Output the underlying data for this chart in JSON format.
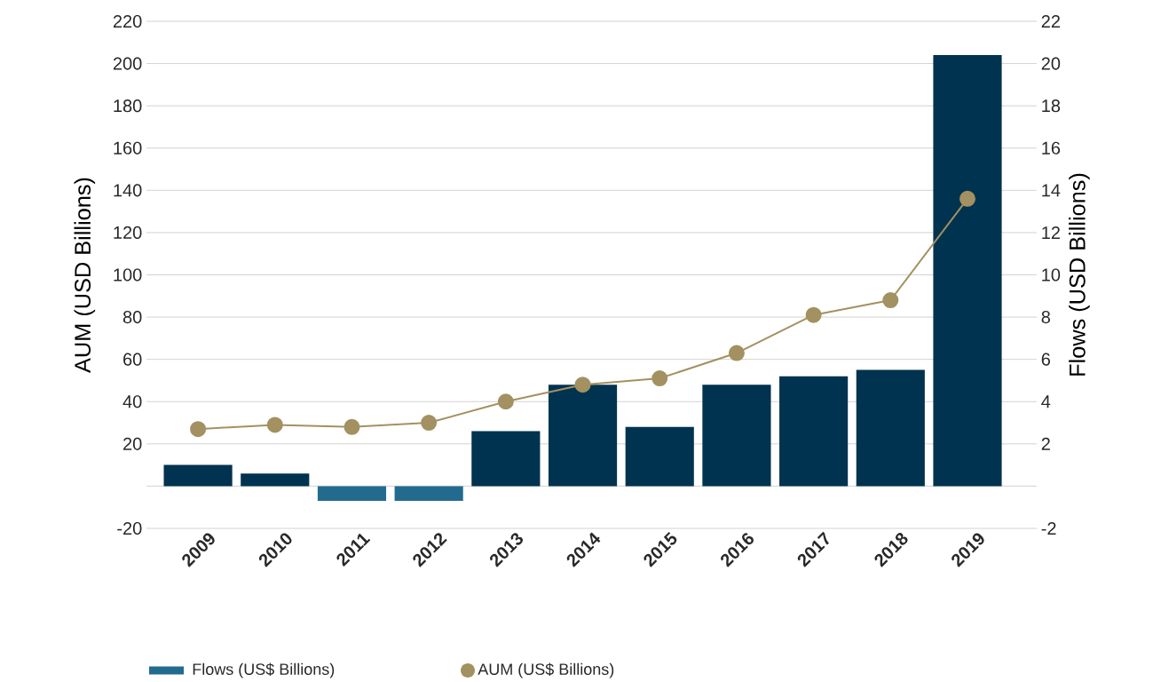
{
  "chart_data": {
    "type": "bar",
    "ylabel": "AUM (USD Billions)",
    "y2label": "Flows (USD Billions)",
    "categories": [
      "2009",
      "2010",
      "2011",
      "2012",
      "2013",
      "2014",
      "2015",
      "2016",
      "2017",
      "2018",
      "2019"
    ],
    "series": [
      {
        "name": "Flows (US$ Billions)",
        "axis": "y2",
        "color": "#236b8e",
        "colors": [
          "#00334f",
          "#00334f",
          "#236b8e",
          "#236b8e",
          "#00334f",
          "#00334f",
          "#00334f",
          "#00334f",
          "#00334f",
          "#00334f",
          "#00334f"
        ],
        "values": [
          1.0,
          0.6,
          -0.7,
          -0.7,
          2.6,
          4.8,
          2.8,
          4.8,
          5.2,
          5.5,
          20.4
        ]
      },
      {
        "name": "AUM (US$ Billions)",
        "type": "line",
        "axis": "y",
        "color": "#a39161",
        "marker": "circle",
        "values": [
          27,
          29,
          28,
          30,
          40,
          48,
          51,
          63,
          81,
          88,
          136
        ]
      }
    ],
    "ylim": [
      -20,
      220
    ],
    "yticks": [
      -20,
      {
        "value": 0,
        "label": null
      },
      20,
      40,
      60,
      80,
      100,
      120,
      140,
      160,
      180,
      200,
      220
    ],
    "y2lim": [
      -2,
      22
    ],
    "y2ticks": [
      -2,
      2,
      4,
      6,
      8,
      10,
      12,
      14,
      16,
      18,
      20,
      22
    ],
    "grid": "y",
    "legend": "bottom"
  }
}
